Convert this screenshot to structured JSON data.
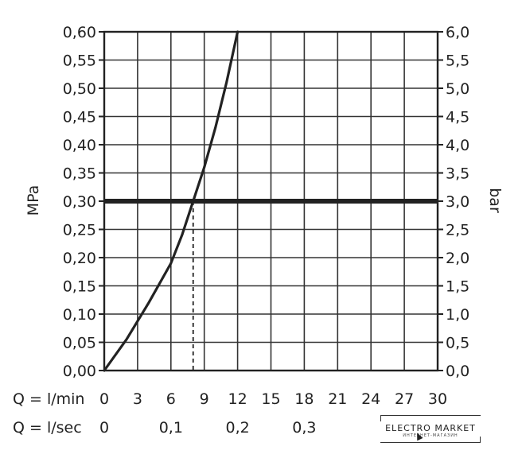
{
  "chart_data": {
    "type": "line",
    "y_left_label": "MPa",
    "y_right_label": "bar",
    "y_left_ticks": [
      "0,00",
      "0,05",
      "0,10",
      "0,15",
      "0,20",
      "0,25",
      "0,30",
      "0,35",
      "0,40",
      "0,45",
      "0,50",
      "0,55",
      "0,60"
    ],
    "y_right_ticks": [
      "0,0",
      "0,5",
      "1,0",
      "1,5",
      "2,0",
      "2,5",
      "3,0",
      "3,5",
      "4,0",
      "4,5",
      "5,0",
      "5,5",
      "6,0"
    ],
    "ylim": [
      0,
      0.6
    ],
    "x_lmin_label": "Q = l/min",
    "x_lmin_ticks": [
      "0",
      "3",
      "6",
      "9",
      "12",
      "15",
      "18",
      "21",
      "24",
      "27",
      "30"
    ],
    "x_lsec_label": "Q = l/sec",
    "x_lsec_ticks": [
      {
        "label": "0",
        "lmin": 0
      },
      {
        "label": "0,1",
        "lmin": 6
      },
      {
        "label": "0,2",
        "lmin": 12
      },
      {
        "label": "0,3",
        "lmin": 18
      }
    ],
    "xlim": [
      0,
      30
    ],
    "grid": true,
    "series": [
      {
        "x": [
          0,
          2,
          4,
          6,
          7,
          8,
          9,
          10,
          11,
          12
        ],
        "y": [
          0,
          0.055,
          0.12,
          0.19,
          0.24,
          0.3,
          0.36,
          0.43,
          0.51,
          0.6
        ]
      }
    ],
    "reference_line_y": 0.3,
    "reference_drop_x": 8,
    "reference_drop_label": ""
  },
  "watermark": {
    "title": "ELECTRO MARKET",
    "subtitle": "ИНТЕРНЕТ-МАГАЗИН"
  }
}
